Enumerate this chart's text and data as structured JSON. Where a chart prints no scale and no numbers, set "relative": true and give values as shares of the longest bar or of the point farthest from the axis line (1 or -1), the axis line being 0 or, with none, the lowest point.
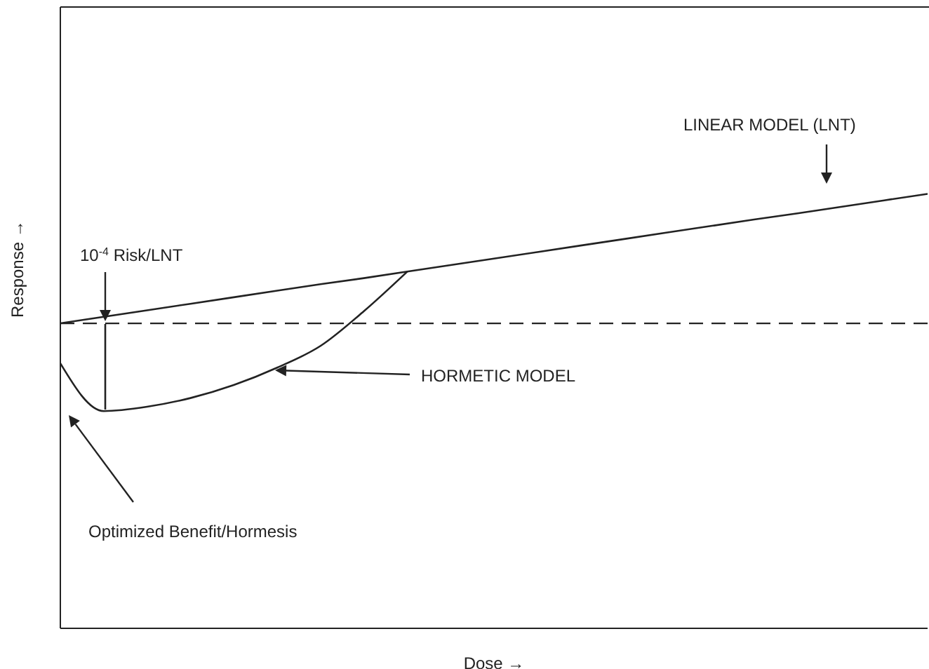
{
  "chart_data": {
    "type": "line",
    "relative": true,
    "xlabel": "Dose →",
    "ylabel": "Response →",
    "categories": [
      null,
      null,
      null,
      null,
      null,
      null,
      null,
      null,
      null,
      null,
      null,
      null,
      null,
      null,
      null,
      null,
      null,
      null,
      null,
      null,
      null
    ],
    "series": [
      {
        "color": "#222222",
        "values": [
          0.702,
          0.717,
          0.732,
          0.747,
          0.762,
          0.777,
          0.792,
          0.806,
          0.821,
          0.836,
          0.851,
          0.866,
          0.881,
          0.896,
          0.911,
          0.926,
          0.941,
          0.955,
          0.97,
          0.985,
          1.0
        ]
      },
      {
        "color": "#222222",
        "values": [
          0.61,
          0.5,
          0.51,
          0.53,
          0.56,
          0.6,
          0.65,
          0.73,
          0.821,
          null,
          null,
          null,
          null,
          null,
          null,
          null,
          null,
          null,
          null,
          null,
          null
        ]
      }
    ],
    "ref_lines": [
      {
        "axis": "y",
        "value": 0.702,
        "line_style": "dashed",
        "color": "#222222"
      }
    ],
    "annotations": [
      "LINEAR MODEL (LNT)",
      "10$^{-4}$ Risk/LNT",
      "HORMETIC MODEL",
      "Optimized Benefit/Hormesis"
    ],
    "marker": "none",
    "line_style": "solid"
  }
}
